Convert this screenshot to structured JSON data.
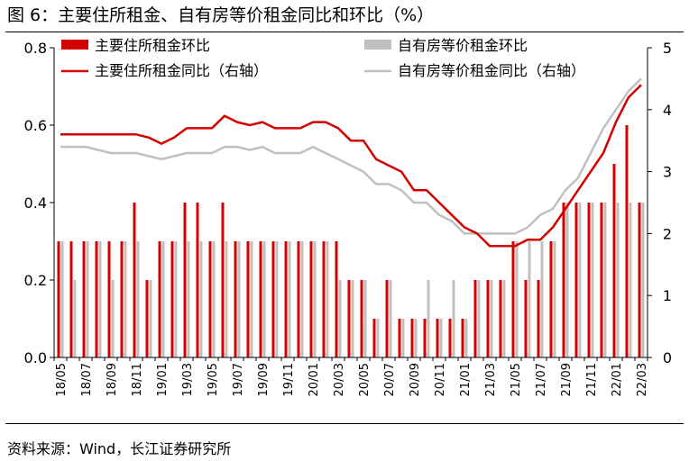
{
  "title": "图 6：主要住所租金、自有房等价租金同比和环比（%）",
  "source": "资料来源：Wind，长江证券研究所",
  "colors": {
    "red": "#d40000",
    "gray": "#c0c0c0"
  },
  "chart_data": {
    "type": "bar+line",
    "categories": [
      "18/05",
      "18/06",
      "18/07",
      "18/08",
      "18/09",
      "18/10",
      "18/11",
      "18/12",
      "19/01",
      "19/02",
      "19/03",
      "19/04",
      "19/05",
      "19/06",
      "19/07",
      "19/08",
      "19/09",
      "19/10",
      "19/11",
      "19/12",
      "20/01",
      "20/02",
      "20/03",
      "20/04",
      "20/05",
      "20/06",
      "20/07",
      "20/08",
      "20/09",
      "20/10",
      "20/11",
      "20/12",
      "21/01",
      "21/02",
      "21/03",
      "21/04",
      "21/05",
      "21/06",
      "21/07",
      "21/08",
      "21/09",
      "21/10",
      "21/11",
      "21/12",
      "22/01",
      "22/02",
      "22/03"
    ],
    "xtick_labels": [
      "18/05",
      "18/07",
      "18/09",
      "18/11",
      "19/01",
      "19/03",
      "19/05",
      "19/07",
      "19/09",
      "19/11",
      "20/01",
      "20/03",
      "20/05",
      "20/07",
      "20/09",
      "20/11",
      "21/01",
      "21/03",
      "21/05",
      "21/07",
      "21/09",
      "21/11",
      "22/01",
      "22/03"
    ],
    "left_axis": {
      "ylim": [
        0,
        0.8
      ],
      "ticks": [
        "0.0",
        "0.2",
        "0.4",
        "0.6",
        "0.8"
      ]
    },
    "right_axis": {
      "ylim": [
        0,
        5
      ],
      "ticks": [
        "0",
        "1",
        "2",
        "3",
        "4",
        "5"
      ]
    },
    "series": [
      {
        "name": "主要住所租金环比",
        "kind": "bar",
        "axis": "left",
        "color": "#d40000",
        "values": [
          0.3,
          0.3,
          0.3,
          0.3,
          0.3,
          0.3,
          0.4,
          0.2,
          0.3,
          0.3,
          0.4,
          0.4,
          0.3,
          0.4,
          0.3,
          0.3,
          0.3,
          0.3,
          0.3,
          0.3,
          0.3,
          0.3,
          0.3,
          0.2,
          0.2,
          0.1,
          0.2,
          0.1,
          0.1,
          0.1,
          0.1,
          0.1,
          0.1,
          0.2,
          0.2,
          0.2,
          0.3,
          0.2,
          0.2,
          0.3,
          0.4,
          0.4,
          0.4,
          0.4,
          0.5,
          0.6,
          0.4
        ]
      },
      {
        "name": "自有房等价租金环比",
        "kind": "bar",
        "axis": "left",
        "color": "#c0c0c0",
        "values": [
          0.3,
          0.2,
          0.3,
          0.3,
          0.2,
          0.3,
          0.3,
          0.2,
          0.3,
          0.3,
          0.3,
          0.3,
          0.3,
          0.3,
          0.3,
          0.3,
          0.3,
          0.3,
          0.3,
          0.3,
          0.3,
          0.3,
          0.2,
          0.2,
          0.2,
          0.1,
          0.2,
          0.1,
          0.1,
          0.2,
          0.1,
          0.2,
          0.1,
          0.2,
          0.2,
          0.2,
          0.3,
          0.3,
          0.3,
          0.3,
          0.4,
          0.4,
          0.4,
          0.4,
          0.4,
          0.4,
          0.4
        ]
      },
      {
        "name": "主要住所租金同比（右轴）",
        "kind": "line",
        "axis": "right",
        "color": "#d40000",
        "values": [
          3.6,
          3.6,
          3.6,
          3.6,
          3.6,
          3.6,
          3.6,
          3.55,
          3.45,
          3.55,
          3.7,
          3.7,
          3.7,
          3.9,
          3.8,
          3.75,
          3.8,
          3.7,
          3.7,
          3.7,
          3.8,
          3.8,
          3.7,
          3.5,
          3.5,
          3.2,
          3.1,
          3.0,
          2.7,
          2.7,
          2.5,
          2.3,
          2.1,
          2.0,
          1.8,
          1.8,
          1.8,
          1.9,
          1.9,
          2.1,
          2.4,
          2.7,
          3.0,
          3.3,
          3.8,
          4.2,
          4.4
        ]
      },
      {
        "name": "自有房等价租金同比（右轴）",
        "kind": "line",
        "axis": "right",
        "color": "#c0c0c0",
        "values": [
          3.4,
          3.4,
          3.4,
          3.35,
          3.3,
          3.3,
          3.3,
          3.25,
          3.2,
          3.25,
          3.3,
          3.3,
          3.3,
          3.4,
          3.4,
          3.35,
          3.4,
          3.3,
          3.3,
          3.3,
          3.4,
          3.3,
          3.2,
          3.1,
          3.0,
          2.8,
          2.8,
          2.7,
          2.5,
          2.5,
          2.3,
          2.2,
          2.0,
          2.0,
          2.0,
          2.0,
          2.0,
          2.1,
          2.3,
          2.4,
          2.7,
          2.9,
          3.3,
          3.7,
          4.0,
          4.3,
          4.5
        ]
      }
    ],
    "legend": {
      "bar_red": "主要住所租金环比",
      "bar_gray": "自有房等价租金环比",
      "line_red": "主要住所租金同比（右轴）",
      "line_gray": "自有房等价租金同比（右轴）"
    }
  }
}
